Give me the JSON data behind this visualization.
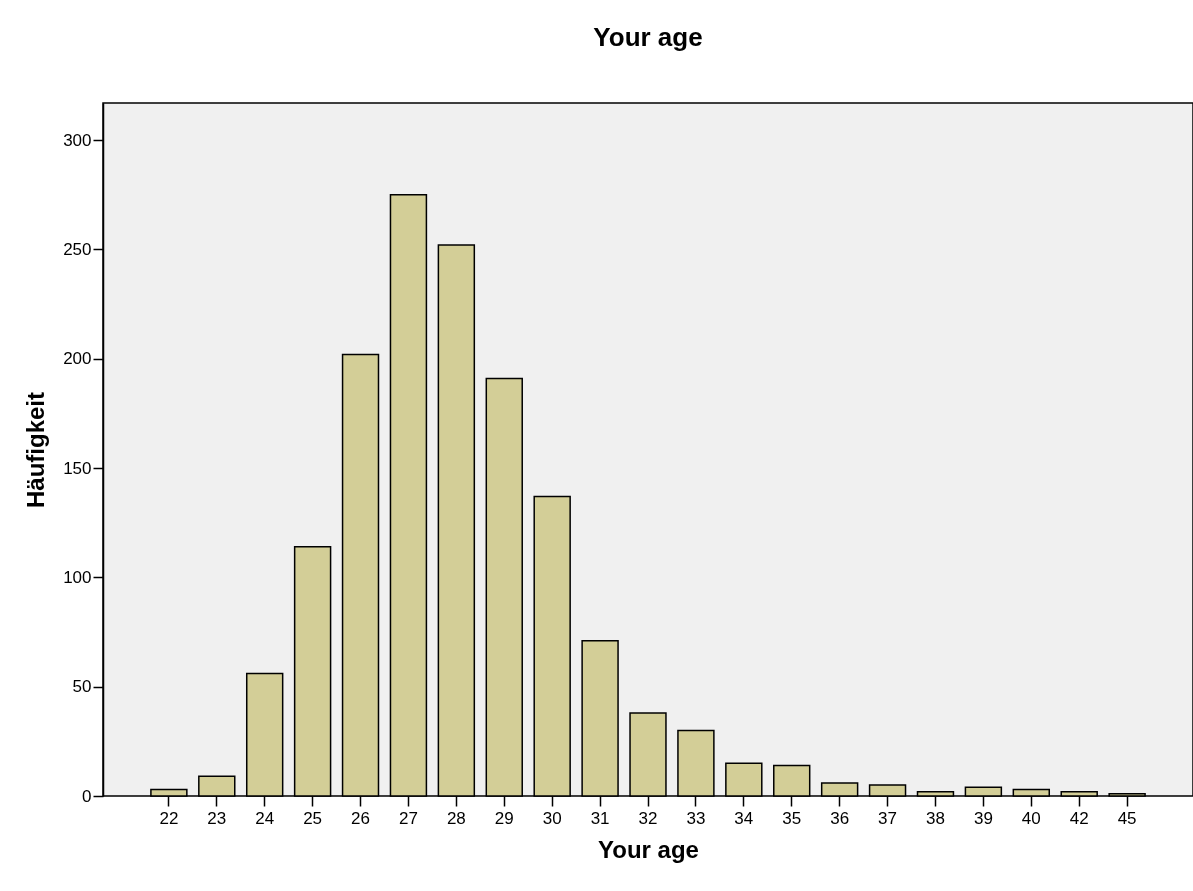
{
  "chart_data": {
    "type": "bar",
    "title": "Your age",
    "xlabel": "Your age",
    "ylabel": "Häufigkeit",
    "categories": [
      "22",
      "23",
      "24",
      "25",
      "26",
      "27",
      "28",
      "29",
      "30",
      "31",
      "32",
      "33",
      "34",
      "35",
      "36",
      "37",
      "38",
      "39",
      "40",
      "42",
      "45"
    ],
    "values": [
      3,
      9,
      56,
      114,
      202,
      275,
      252,
      191,
      137,
      71,
      38,
      30,
      15,
      14,
      6,
      5,
      2,
      4,
      3,
      2,
      1
    ],
    "color": "#d3ce97",
    "ylim": [
      0,
      317
    ],
    "yticks": [
      0,
      50,
      100,
      150,
      200,
      250,
      300
    ],
    "grid": false
  }
}
